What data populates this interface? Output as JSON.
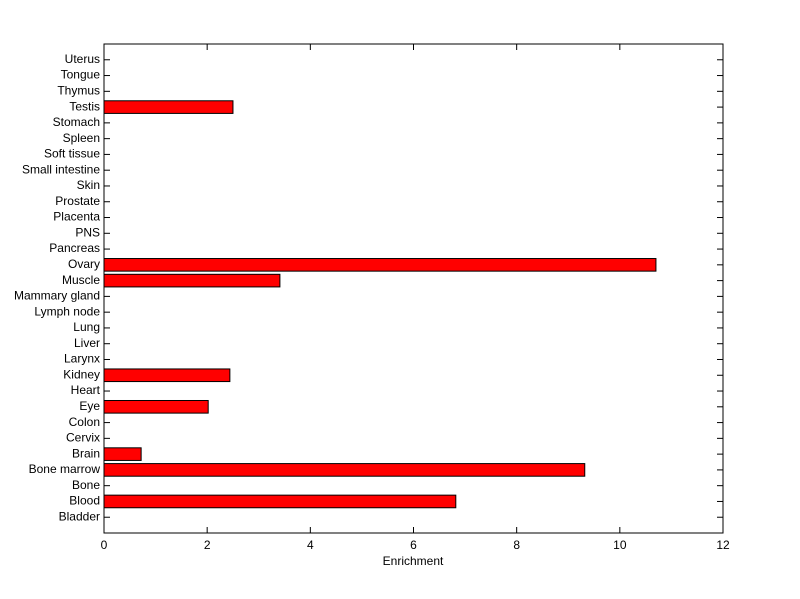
{
  "chart_data": {
    "type": "barh",
    "xlabel": "Enrichment",
    "categories": [
      "Bladder",
      "Blood",
      "Bone",
      "Bone marrow",
      "Brain",
      "Cervix",
      "Colon",
      "Eye",
      "Heart",
      "Kidney",
      "Larynx",
      "Liver",
      "Lung",
      "Lymph node",
      "Mammary gland",
      "Muscle",
      "Ovary",
      "Pancreas",
      "PNS",
      "Placenta",
      "Prostate",
      "Skin",
      "Small intestine",
      "Soft tissue",
      "Spleen",
      "Stomach",
      "Testis",
      "Thymus",
      "Tongue",
      "Uterus"
    ],
    "values": [
      0,
      6.82,
      0,
      9.32,
      0.72,
      0,
      0,
      2.02,
      0,
      2.44,
      0,
      0,
      0,
      0,
      0,
      3.41,
      10.7,
      0,
      0,
      0,
      0,
      0,
      0,
      0,
      0,
      0,
      2.5,
      0,
      0,
      0
    ],
    "color": "#ff0000",
    "xlim": [
      0,
      12
    ],
    "xticks": [
      0,
      2,
      4,
      6,
      8,
      10,
      12
    ]
  }
}
